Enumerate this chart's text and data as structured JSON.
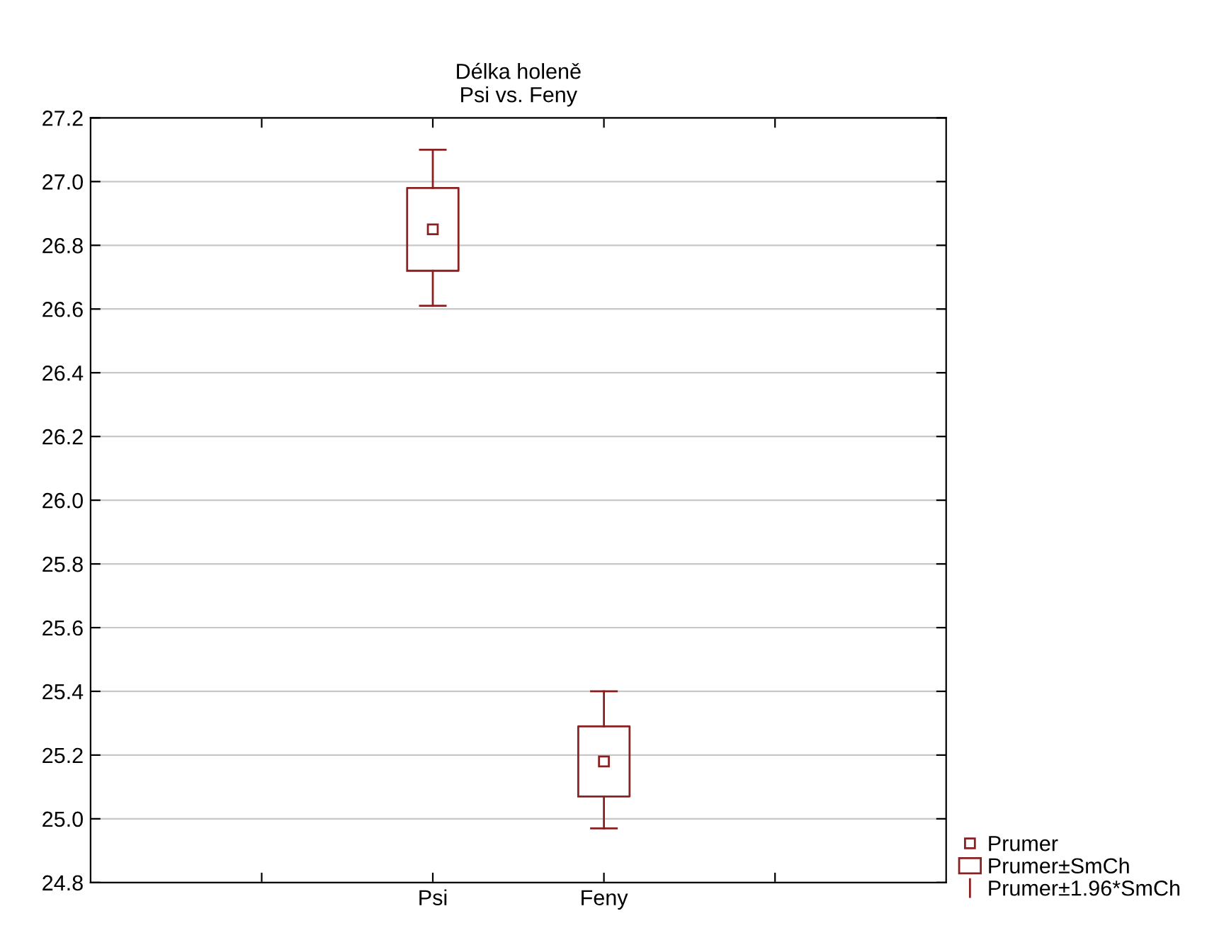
{
  "chart_data": {
    "type": "box",
    "title": "Délka holeně",
    "subtitle": "Psi vs. Feny",
    "categories": [
      null,
      "Psi",
      "Feny",
      null
    ],
    "boxes": [
      null,
      {
        "low": 26.61,
        "q1": 26.72,
        "median": 26.85,
        "q3": 26.98,
        "high": 27.1
      },
      {
        "low": 24.97,
        "q1": 25.07,
        "median": 25.18,
        "q3": 25.29,
        "high": 25.4
      },
      null
    ],
    "color": "#8b2020",
    "ylim": [
      24.8,
      27.2
    ],
    "yticks": [
      24.8,
      {
        "value": 25,
        "label": "25.0"
      },
      25.2,
      25.4,
      25.6,
      25.8,
      {
        "value": 26,
        "label": "26.0"
      },
      26.2,
      26.4,
      26.6,
      26.8,
      {
        "value": 27,
        "label": "27.0"
      },
      27.2
    ],
    "grid": "y",
    "annotations": [
      "Prumer",
      "Prumer±SmCh",
      "Prumer±1.96*SmCh"
    ]
  }
}
